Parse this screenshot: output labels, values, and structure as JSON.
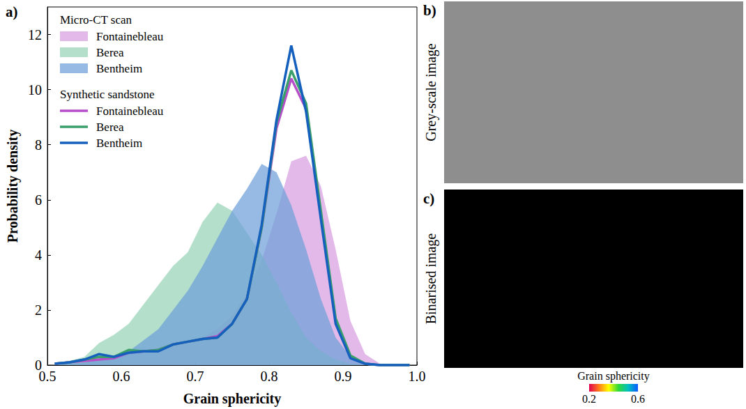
{
  "chart_data": {
    "type": "line",
    "panel": "a)",
    "xlabel": "Grain sphericity",
    "ylabel": "Probability density",
    "x": [
      0.51,
      0.53,
      0.55,
      0.57,
      0.59,
      0.61,
      0.63,
      0.65,
      0.67,
      0.69,
      0.71,
      0.73,
      0.75,
      0.77,
      0.79,
      0.81,
      0.83,
      0.85,
      0.87,
      0.89,
      0.91,
      0.93,
      0.95,
      0.97,
      0.99
    ],
    "xlim": [
      0.5,
      1
    ],
    "xticks": [
      0.5,
      0.6,
      0.7,
      0.8,
      0.9,
      {
        "value": 1,
        "label": "1.0"
      }
    ],
    "ylim": [
      0,
      13
    ],
    "yticks": [
      0,
      2,
      4,
      6,
      8,
      10,
      12
    ],
    "grid": false,
    "legend": "upper left",
    "series": [
      {
        "group": "Micro-CT scan",
        "name": "Fontainebleau",
        "type": "area",
        "color": "#d89ee0",
        "values": [
          0.05,
          0.05,
          0.1,
          0.2,
          0.3,
          0.4,
          0.5,
          0.6,
          0.7,
          0.8,
          1.0,
          1.3,
          1.8,
          2.6,
          3.8,
          5.5,
          7.4,
          7.6,
          6.5,
          4.2,
          1.6,
          0.4,
          0.05,
          0,
          0
        ]
      },
      {
        "group": "Micro-CT scan",
        "name": "Berea",
        "type": "area",
        "color": "#97d3b5",
        "values": [
          0.05,
          0.15,
          0.3,
          0.8,
          1.1,
          1.5,
          2.2,
          2.9,
          3.6,
          4.1,
          5.2,
          5.9,
          5.6,
          4.8,
          4.0,
          3.0,
          1.9,
          1.0,
          0.5,
          0.2,
          0.05,
          0,
          0,
          0,
          0
        ]
      },
      {
        "group": "Micro-CT scan",
        "name": "Bentheim",
        "type": "area",
        "color": "#6d9fd8",
        "values": [
          0.05,
          0.05,
          0.1,
          0.2,
          0.3,
          0.5,
          0.9,
          1.3,
          2.0,
          2.7,
          3.6,
          4.6,
          5.6,
          6.4,
          7.3,
          7.0,
          5.8,
          4.2,
          2.4,
          1.0,
          0.3,
          0.05,
          0,
          0,
          0
        ]
      },
      {
        "group": "Synthetic sandstone",
        "name": "Fontainebleau",
        "type": "line",
        "color": "#b54ec8",
        "values": [
          0.05,
          0.1,
          0.15,
          0.2,
          0.25,
          0.45,
          0.5,
          0.55,
          0.75,
          0.85,
          0.95,
          1.05,
          1.5,
          2.4,
          5.0,
          8.6,
          10.4,
          9.3,
          5.5,
          1.6,
          0.3,
          0.05,
          0,
          0,
          0
        ]
      },
      {
        "group": "Synthetic sandstone",
        "name": "Berea",
        "type": "line",
        "color": "#3b9f6b",
        "values": [
          0.05,
          0.1,
          0.2,
          0.3,
          0.3,
          0.55,
          0.5,
          0.55,
          0.75,
          0.85,
          0.95,
          1.0,
          1.5,
          2.4,
          5.0,
          8.8,
          10.7,
          9.5,
          5.6,
          1.7,
          0.35,
          0.05,
          0,
          0,
          0
        ]
      },
      {
        "group": "Synthetic sandstone",
        "name": "Bentheim",
        "type": "line",
        "color": "#1560bd",
        "values": [
          0.05,
          0.1,
          0.2,
          0.4,
          0.3,
          0.45,
          0.5,
          0.5,
          0.75,
          0.85,
          0.95,
          1.0,
          1.5,
          2.4,
          5.1,
          8.9,
          11.6,
          9.2,
          5.3,
          1.5,
          0.25,
          0.05,
          0,
          0,
          0
        ]
      }
    ]
  },
  "panels": [
    {
      "letter": "b)",
      "label": "Grey-scale image"
    },
    {
      "letter": "c)",
      "label": "Binarised image",
      "colorbar": {
        "label": "Grain sphericity",
        "range": [
          0.2,
          0.6
        ],
        "ticks": [
          0.2,
          0.6
        ]
      }
    }
  ]
}
